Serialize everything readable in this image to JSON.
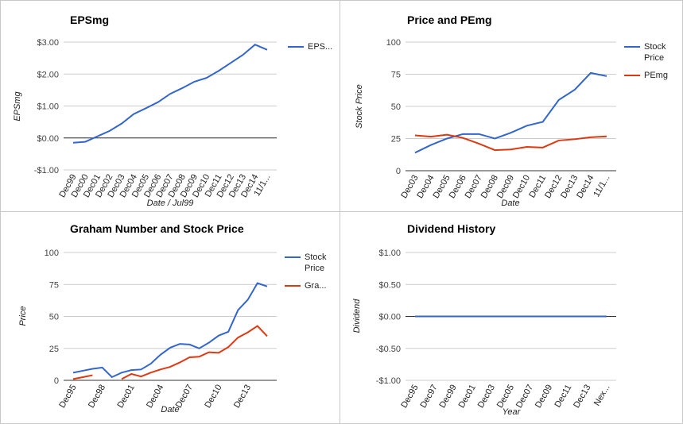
{
  "chart_data": [
    {
      "type": "line",
      "title": "EPSmg",
      "x_label": "Date / Jul99",
      "y_label": "EPSmg",
      "categories": [
        "Dec99",
        "Dec00",
        "Dec01",
        "Dec02",
        "Dec03",
        "Dec04",
        "Dec05",
        "Dec06",
        "Dec07",
        "Dec08",
        "Dec09",
        "Dec10",
        "Dec11",
        "Dec12",
        "Dec13",
        "Dec14",
        "11/1..."
      ],
      "series": [
        {
          "name": "EPS...",
          "color": "#3366cc",
          "values": [
            -0.15,
            -0.12,
            0.05,
            0.22,
            0.45,
            0.75,
            0.93,
            1.12,
            1.38,
            1.56,
            1.76,
            1.88,
            2.1,
            2.35,
            2.6,
            2.92,
            2.76
          ]
        }
      ],
      "ylim": [
        -1,
        3
      ],
      "yticks": [
        {
          "value": 3,
          "label": "$3.00"
        },
        {
          "value": 2,
          "label": "$2.00"
        },
        {
          "value": 1,
          "label": "$1.00"
        },
        {
          "value": 0,
          "label": "$0.00"
        },
        {
          "value": -1,
          "label": "-$1.00"
        }
      ],
      "grid": true,
      "legend": "right"
    },
    {
      "type": "line",
      "title": "Price and PEmg",
      "x_label": "Date",
      "y_label": "Stock Price",
      "categories": [
        "Dec03",
        "Dec04",
        "Dec05",
        "Dec06",
        "Dec07",
        "Dec08",
        "Dec09",
        "Dec10",
        "Dec11",
        "Dec12",
        "Dec13",
        "Dec14",
        "11/1..."
      ],
      "series": [
        {
          "name": "Stock Price",
          "color": "#3366cc",
          "values": [
            14,
            20,
            25,
            28.5,
            28.5,
            25,
            29.5,
            35,
            38,
            55,
            63,
            76,
            73.5
          ]
        },
        {
          "name": "PEmg",
          "color": "#dc3912",
          "values": [
            27.5,
            26.5,
            28,
            25.5,
            21,
            16,
            16.5,
            18.5,
            18,
            23.5,
            24.5,
            26,
            26.7
          ]
        }
      ],
      "ylim": [
        0,
        100
      ],
      "yticks": [
        100,
        75,
        50,
        25,
        0
      ],
      "grid": true,
      "legend": "right"
    },
    {
      "type": "line",
      "title": "Graham Number and Stock Price",
      "x_label": "Date",
      "y_label": "Price",
      "categories": [
        "Dec95",
        null,
        null,
        "Dec98",
        null,
        null,
        "Dec01",
        null,
        null,
        "Dec04",
        null,
        null,
        "Dec07",
        null,
        null,
        "Dec10",
        null,
        null,
        "Dec13",
        null,
        null
      ],
      "series": [
        {
          "name": "Stock Price",
          "color": "#3366cc",
          "values": [
            6,
            7.5,
            9,
            10,
            2.5,
            6,
            8,
            8.5,
            13,
            20,
            25.5,
            28.5,
            28,
            25,
            29.5,
            35,
            38,
            55,
            63,
            76,
            73.5
          ]
        },
        {
          "name": "Gra...",
          "color": "#dc3912",
          "values": [
            1,
            2.5,
            4,
            null,
            null,
            1,
            5,
            3,
            6,
            8.5,
            10.5,
            14,
            18,
            18.5,
            22,
            21.5,
            26,
            33.5,
            37.5,
            42.5,
            34.5
          ]
        }
      ],
      "ylim": [
        0,
        100
      ],
      "yticks": [
        100,
        75,
        50,
        25,
        0
      ],
      "grid": true,
      "legend": "right"
    },
    {
      "type": "line",
      "title": "Dividend History",
      "x_label": "Year",
      "y_label": "Dividend",
      "categories": [
        "Dec95",
        "Dec97",
        "Dec99",
        "Dec01",
        "Dec03",
        "Dec05",
        "Dec07",
        "Dec09",
        "Dec11",
        "Dec13",
        "Nex..."
      ],
      "values": [
        0,
        0,
        0,
        0,
        0,
        0,
        0,
        0,
        0,
        0,
        0
      ],
      "color": "#3366cc",
      "ylim": [
        -1,
        1
      ],
      "yticks": [
        {
          "value": 1,
          "label": "$1.00"
        },
        {
          "value": 0.5,
          "label": "$0.50"
        },
        {
          "value": 0,
          "label": "$0.00"
        },
        {
          "value": -0.5,
          "label": "-$0.50"
        },
        {
          "value": -1,
          "label": "-$1.00"
        }
      ],
      "grid": true
    }
  ]
}
